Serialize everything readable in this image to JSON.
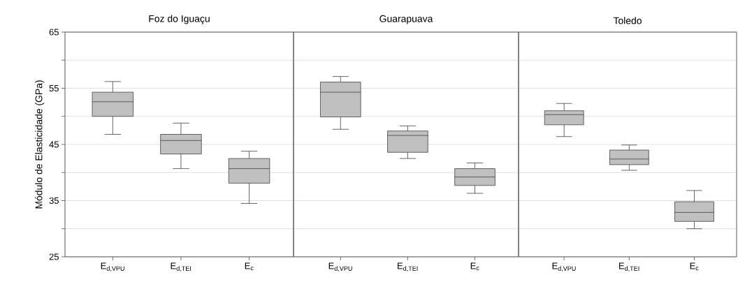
{
  "chart_data": [
    {
      "type": "box",
      "title": "Foz do Iguaçu",
      "ylabel": "Módulo de Elasticidade (GPa)",
      "categories": [
        "E$_{d,VPU}$",
        "E$_{d,TEI}$",
        "E$_{c}$"
      ],
      "color": "#c0c0c0",
      "ylim": [
        25,
        65
      ],
      "yticks": [
        25,
        {
          "value": 30,
          "label": null
        },
        35,
        {
          "value": 40,
          "label": null
        },
        45,
        {
          "value": 50,
          "label": null
        },
        55,
        {
          "value": 60,
          "label": null
        },
        65
      ],
      "grid": "y",
      "boxes": [
        {
          "low": 46.8,
          "q1": 50.0,
          "median": 52.6,
          "q3": 54.3,
          "high": 56.2
        },
        {
          "low": 40.7,
          "q1": 43.3,
          "median": 45.7,
          "q3": 46.8,
          "high": 48.8
        },
        {
          "low": 34.5,
          "q1": 38.1,
          "median": 40.7,
          "q3": 42.5,
          "high": 43.8
        }
      ]
    },
    {
      "type": "box",
      "title": "Guarapuava",
      "categories": [
        "E$_{d,VPU}$",
        "E$_{d,TEI}$",
        "E$_{c}$"
      ],
      "color": "#c0c0c0",
      "ylim": [
        25,
        65
      ],
      "tick_labels": "x",
      "grid": "y",
      "boxes": [
        {
          "low": 47.7,
          "q1": 49.9,
          "median": 54.3,
          "q3": 56.1,
          "high": 57.1
        },
        {
          "low": 42.5,
          "q1": 43.6,
          "median": 46.6,
          "q3": 47.4,
          "high": 48.3
        },
        {
          "low": 36.3,
          "q1": 37.7,
          "median": 39.2,
          "q3": 40.7,
          "high": 41.7
        }
      ]
    },
    {
      "type": "box",
      "title": "Toledo",
      "categories": [
        "E$_{d,VPU}$",
        "E$_{d,TEI}$",
        "E$_{c}$"
      ],
      "color": "#c0c0c0",
      "ylim": [
        25,
        65
      ],
      "tick_labels": "x",
      "grid": "y",
      "boxes": [
        {
          "low": 46.4,
          "q1": 48.5,
          "median": 50.3,
          "q3": 51.0,
          "high": 52.3
        },
        {
          "low": 40.4,
          "q1": 41.4,
          "median": 42.4,
          "q3": 44.0,
          "high": 44.9
        },
        {
          "low": 30.0,
          "q1": 31.3,
          "median": 32.9,
          "q3": 34.8,
          "high": 36.8
        }
      ]
    }
  ]
}
